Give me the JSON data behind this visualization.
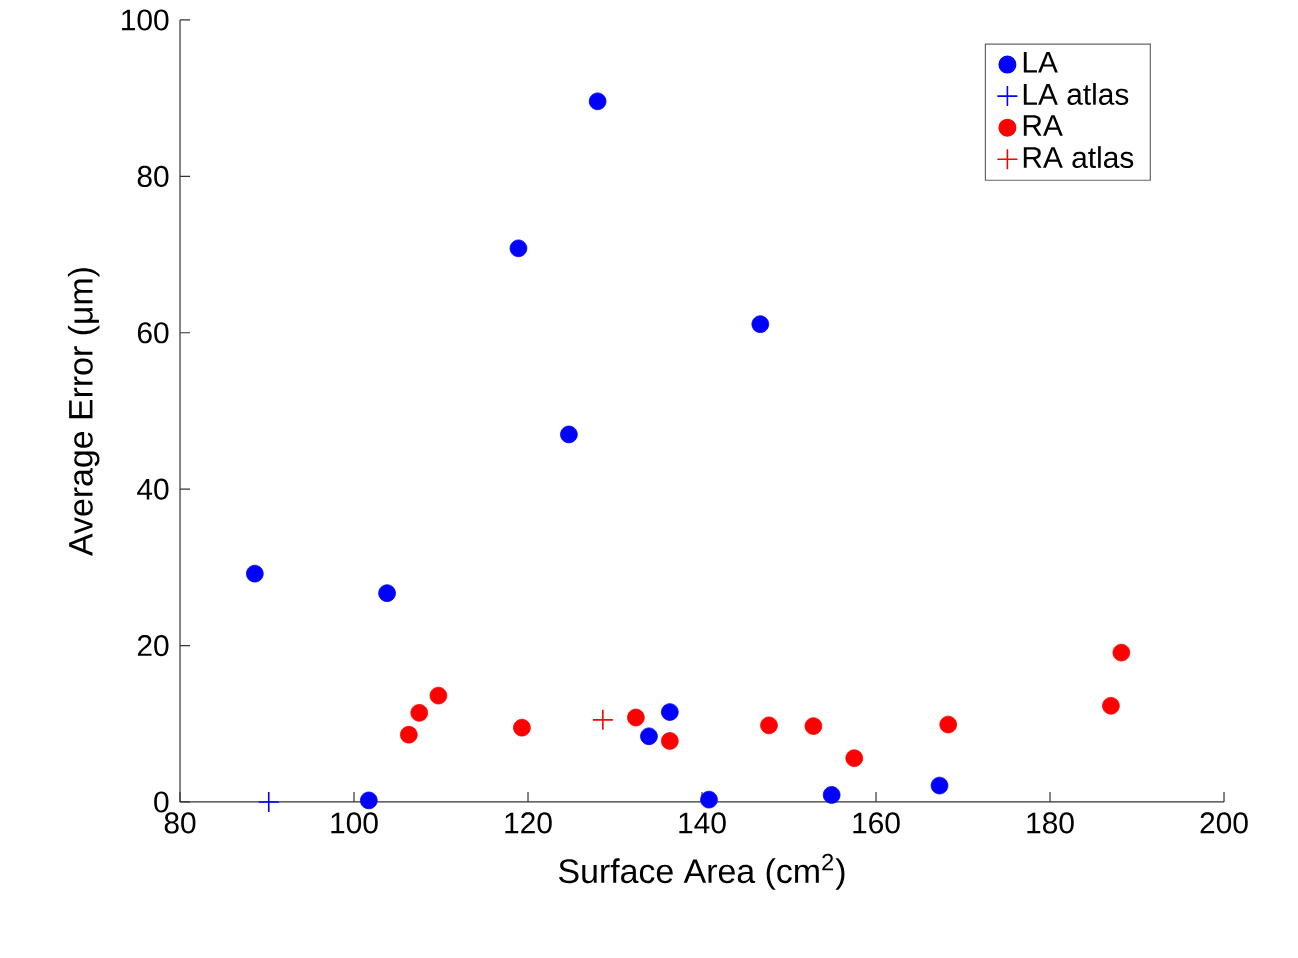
{
  "chart_data": {
    "type": "scatter",
    "xlabel": "Surface Area (cm$^{2}$)",
    "ylabel": "Average Error (μm)",
    "xlim": [
      80,
      200
    ],
    "xticks": [
      80,
      100,
      120,
      140,
      160,
      180,
      200
    ],
    "ylim": [
      0,
      100
    ],
    "yticks": [
      0,
      20,
      40,
      60,
      80,
      100
    ],
    "grid": false,
    "legend": "top right",
    "series": [
      {
        "name": "LA",
        "color": "#0000ff",
        "marker": "circle",
        "x": [
          88.6,
          101.7,
          103.8,
          118.9,
          124.7,
          128.0,
          133.9,
          136.3,
          140.8,
          146.7,
          154.9,
          167.3
        ],
        "values": [
          29.2,
          0.2,
          26.7,
          70.8,
          47.0,
          89.6,
          8.4,
          11.5,
          0.3,
          61.1,
          0.9,
          2.1
        ]
      },
      {
        "name": "LA atlas",
        "color": "#0000ff",
        "marker": "cross",
        "x": [
          90.2
        ],
        "values": [
          0
        ]
      },
      {
        "name": "RA",
        "color": "#ff0000",
        "marker": "circle",
        "x": [
          106.3,
          107.5,
          109.7,
          119.3,
          132.4,
          136.3,
          147.7,
          152.8,
          157.5,
          168.3,
          187.0,
          188.2
        ],
        "values": [
          8.6,
          11.4,
          13.6,
          9.5,
          10.8,
          7.8,
          9.8,
          9.7,
          5.6,
          9.9,
          12.3,
          19.1
        ]
      },
      {
        "name": "RA atlas",
        "color": "#ff0000",
        "marker": "cross",
        "x": [
          128.6
        ],
        "values": [
          10.5
        ]
      }
    ]
  }
}
